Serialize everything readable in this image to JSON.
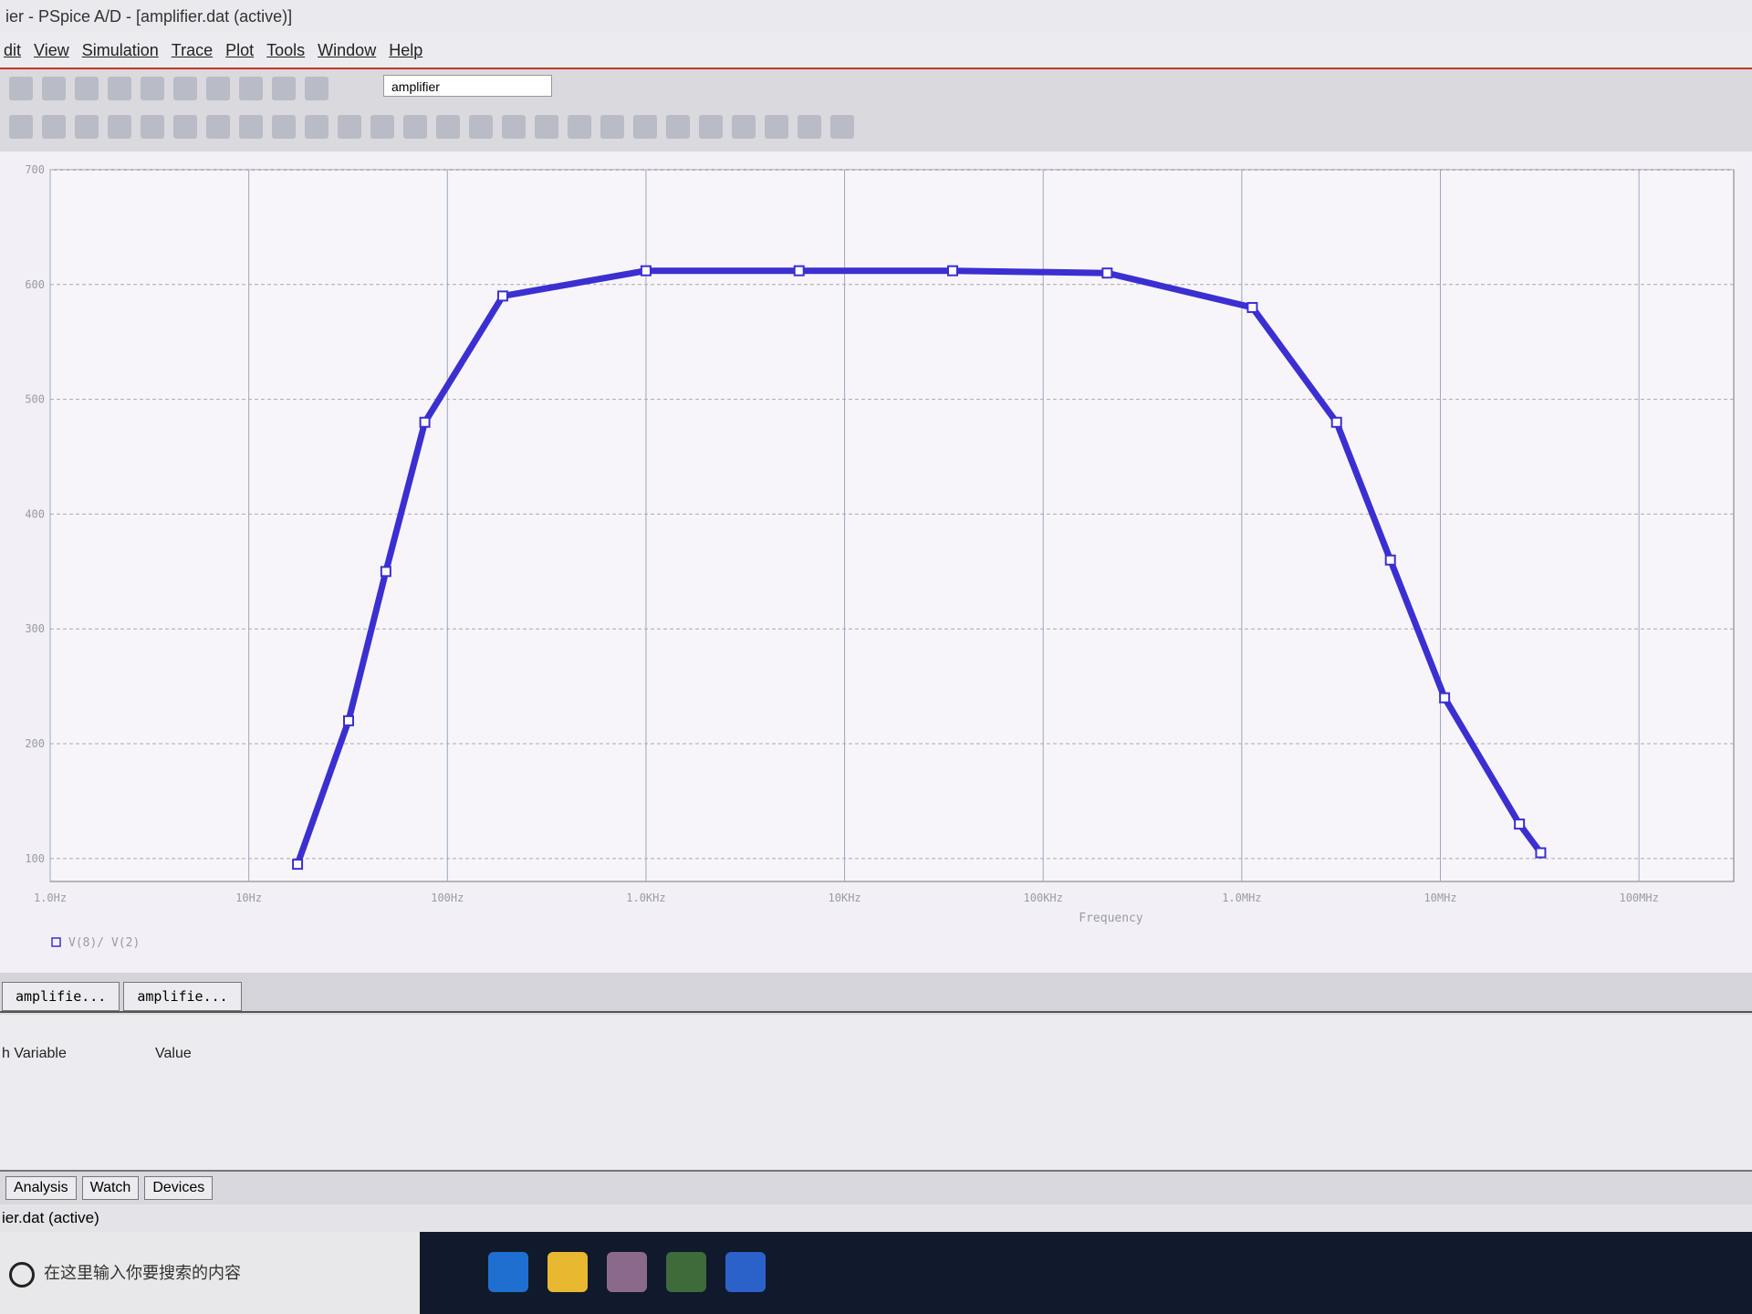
{
  "window": {
    "title": "ier - PSpice A/D  - [amplifier.dat (active)]",
    "menu": [
      "dit",
      "View",
      "Simulation",
      "Trace",
      "Plot",
      "Tools",
      "Window",
      "Help"
    ],
    "profile": "amplifier"
  },
  "chart_data": {
    "type": "line",
    "x_label": "Frequency",
    "xscale": "log",
    "grid": true,
    "x": [
      17.6,
      31.8,
      49,
      77,
      190,
      1000,
      5900,
      35000,
      210000,
      1130000,
      3000000,
      5600000,
      10500000,
      25000000,
      32000000
    ],
    "series": [
      {
        "name": "V(8)/ V(2)",
        "color": "#3b2fd2",
        "values": [
          95,
          220,
          350,
          480,
          590,
          612,
          612,
          612,
          610,
          580,
          480,
          360,
          240,
          130,
          105
        ]
      }
    ],
    "xlim": [
      1,
      300000000
    ],
    "ylim": [
      80,
      700
    ],
    "xticks": [
      {
        "value": 1,
        "label": "1.0Hz"
      },
      {
        "value": 10,
        "label": "10Hz"
      },
      {
        "value": 100,
        "label": "100Hz"
      },
      {
        "value": 1000,
        "label": "1.0KHz"
      },
      {
        "value": 10000,
        "label": "10KHz"
      },
      {
        "value": 100000,
        "label": "100KHz"
      },
      {
        "value": 1000000,
        "label": "1.0MHz"
      },
      {
        "value": 10000000,
        "label": "10MHz"
      },
      {
        "value": 100000000,
        "label": "100MHz"
      }
    ],
    "yticks": [
      100,
      200,
      300,
      400,
      500,
      600,
      700
    ]
  },
  "plot_tabs": [
    "amplifie...",
    "amplifie..."
  ],
  "watch_panel": {
    "columns": [
      "h Variable",
      "Value"
    ]
  },
  "bottom_tabs": [
    "Analysis",
    "Watch",
    "Devices"
  ],
  "status": "ier.dat (active)",
  "taskbar": {
    "search": "在这里输入你要搜索的内容"
  }
}
